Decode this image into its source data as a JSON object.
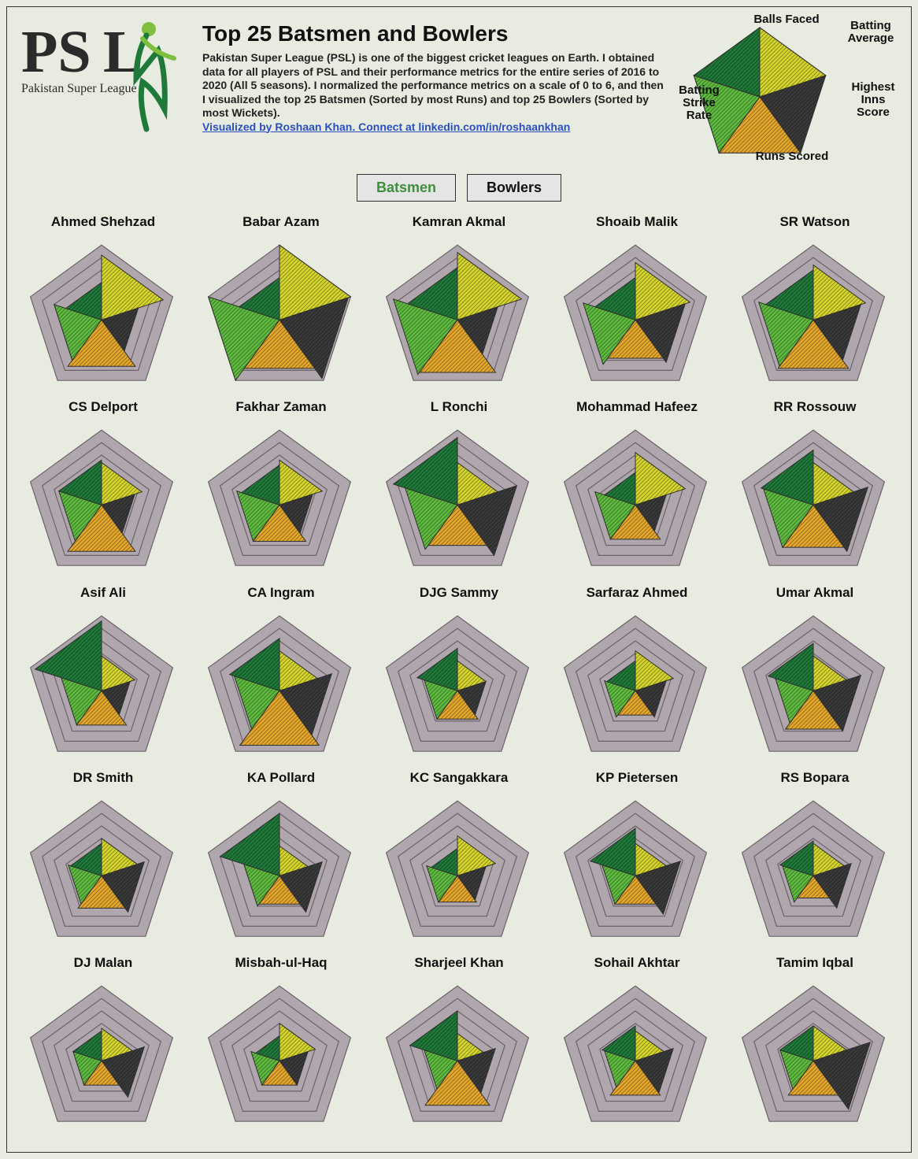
{
  "meta": {
    "title": "Top 25 Batsmen and Bowlers",
    "description": "Pakistan Super League (PSL) is one of the biggest cricket leagues on Earth. I obtained data for all players of PSL and their performance metrics for the entire series of 2016 to 2020 (All 5 seasons). I normalized the performance metrics on a scale of 0 to 6, and then I visualized the top 25 Batsmen (Sorted by most Runs) and top 25 Bowlers (Sorted by most Wickets).",
    "credit_text": "Visualized by Roshaan Khan. Connect at linkedin.com/in/roshaankhan",
    "logo_text_main": "PSL",
    "logo_text_sub": "Pakistan Super League"
  },
  "tabs": {
    "batsmen": "Batsmen",
    "bowlers": "Bowlers",
    "active": "batsmen"
  },
  "legend": {
    "axes": [
      "Balls Faced",
      "Batting Average",
      "Highest Inns Score",
      "Runs Scored",
      "Batting Strike Rate"
    ],
    "values": [
      6,
      6,
      6,
      6,
      6
    ]
  },
  "chart_style": {
    "type": "radar",
    "n_axes": 5,
    "max_value": 6,
    "rings": 6,
    "ring_fill": "#b0a6ad",
    "ring_stroke": "#6b626a",
    "ring_stroke_width": 1.2,
    "background": "#e8ebe0",
    "wedge_stroke": "#2f2f2f",
    "wedge_stroke_width": 1.0,
    "hatch_spacing": 5,
    "wedge_colors": [
      "#d6d62e",
      "#3a3a3a",
      "#e6a82c",
      "#5fbb3f",
      "#1f7a3a"
    ],
    "cell_size": 216,
    "legend_size": 200,
    "title_fontsize": 17,
    "title_fontweight": 800
  },
  "players": [
    {
      "name": "Ahmed Shehzad",
      "values": [
        5.2,
        3.1,
        4.6,
        4.0,
        3.0
      ]
    },
    {
      "name": "Babar Azam",
      "values": [
        6.0,
        5.8,
        4.8,
        6.0,
        3.4
      ]
    },
    {
      "name": "Kamran Akmal",
      "values": [
        5.4,
        3.4,
        5.2,
        5.4,
        4.2
      ]
    },
    {
      "name": "Shoaib Malik",
      "values": [
        4.6,
        4.2,
        3.8,
        4.4,
        3.4
      ]
    },
    {
      "name": "SR Watson",
      "values": [
        4.4,
        4.0,
        4.8,
        4.6,
        4.0
      ]
    },
    {
      "name": "CS Delport",
      "values": [
        3.4,
        2.8,
        4.6,
        3.6,
        3.6
      ]
    },
    {
      "name": "Fakhar Zaman",
      "values": [
        3.6,
        2.8,
        3.6,
        3.6,
        3.2
      ]
    },
    {
      "name": "L Ronchi",
      "values": [
        3.4,
        5.0,
        4.0,
        4.4,
        5.4
      ]
    },
    {
      "name": "Mohammad Hafeez",
      "values": [
        4.2,
        2.6,
        3.4,
        3.4,
        2.6
      ]
    },
    {
      "name": "RR Rossouw",
      "values": [
        3.4,
        4.6,
        4.2,
        4.2,
        4.4
      ]
    },
    {
      "name": "Asif Ali",
      "values": [
        2.8,
        2.4,
        3.4,
        3.4,
        5.6
      ]
    },
    {
      "name": "CA Ingram",
      "values": [
        3.2,
        4.4,
        5.4,
        3.8,
        4.2
      ]
    },
    {
      "name": "DJG Sammy",
      "values": [
        2.4,
        2.4,
        2.8,
        2.8,
        3.4
      ]
    },
    {
      "name": "Sarfaraz Ahmed",
      "values": [
        3.2,
        2.6,
        2.4,
        2.6,
        2.4
      ]
    },
    {
      "name": "Umar Akmal",
      "values": [
        2.8,
        4.0,
        3.8,
        3.2,
        3.8
      ]
    },
    {
      "name": "DR Smith",
      "values": [
        3.0,
        3.6,
        3.2,
        2.8,
        2.6
      ]
    },
    {
      "name": "KA Pollard",
      "values": [
        2.4,
        3.6,
        2.8,
        3.0,
        5.0
      ]
    },
    {
      "name": "KC Sangakkara",
      "values": [
        3.2,
        2.4,
        2.6,
        2.6,
        2.2
      ]
    },
    {
      "name": "KP Pietersen",
      "values": [
        2.6,
        3.8,
        2.8,
        2.8,
        3.8
      ]
    },
    {
      "name": "RS Bopara",
      "values": [
        2.6,
        3.2,
        2.2,
        2.6,
        2.8
      ]
    },
    {
      "name": "DJ Malan",
      "values": [
        2.6,
        3.6,
        2.4,
        2.4,
        2.4
      ]
    },
    {
      "name": "Misbah-ul-Haq",
      "values": [
        3.0,
        2.4,
        2.4,
        2.4,
        2.0
      ]
    },
    {
      "name": "Sharjeel Khan",
      "values": [
        2.2,
        3.2,
        4.4,
        2.8,
        4.0
      ]
    },
    {
      "name": "Sohail Akhtar",
      "values": [
        2.4,
        3.2,
        3.4,
        2.6,
        2.8
      ]
    },
    {
      "name": "Tamim Iqbal",
      "values": [
        2.8,
        4.8,
        3.4,
        2.8,
        2.8
      ]
    }
  ]
}
